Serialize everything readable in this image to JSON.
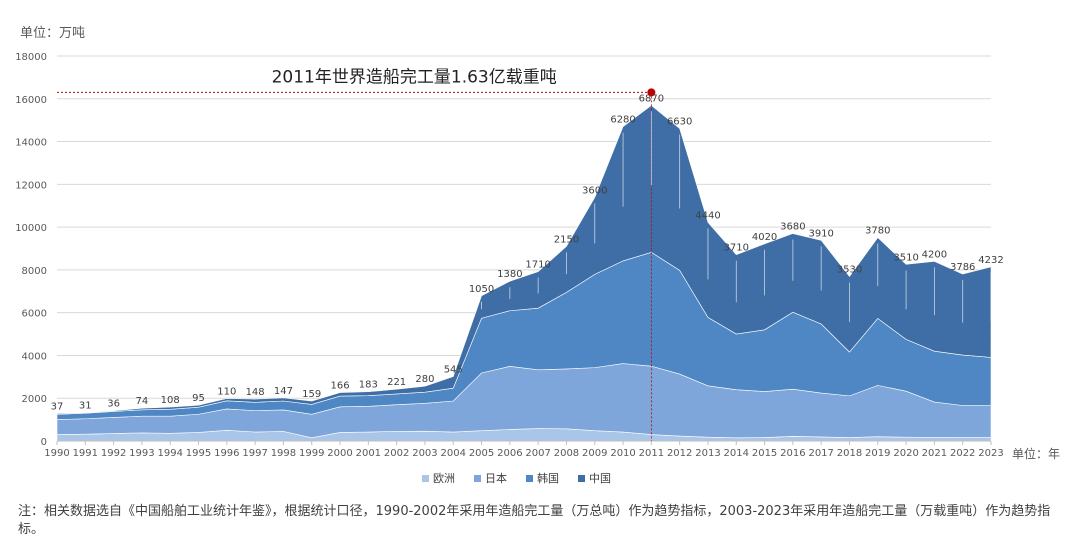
{
  "unit_y": "单位：万吨",
  "unit_x": "单位：年",
  "note": "注：相关数据选自《中国船舶工业统计年鉴》，根据统计口径，1990-2002年采用年造船完工量（万总吨）作为趋势指标，2003-2023年采用年造船完工量（万载重吨）作为趋势指标。",
  "colors": {
    "europe": "#a9c6e8",
    "japan": "#7ea6da",
    "korea": "#4f87c5",
    "china": "#3f6ea6"
  },
  "chart_data": {
    "type": "area",
    "stacked": true,
    "title": "",
    "xlabel": "单位：年",
    "ylabel": "单位：万吨",
    "ylim": [
      0,
      18000
    ],
    "yticks": [
      0,
      2000,
      4000,
      6000,
      8000,
      10000,
      12000,
      14000,
      16000,
      18000
    ],
    "grid": true,
    "legend_position": "bottom",
    "x": [
      "1990",
      "1991",
      "1992",
      "1993",
      "1994",
      "1995",
      "1996",
      "1997",
      "1998",
      "1999",
      "2000",
      "2001",
      "2002",
      "2003",
      "2004",
      "2005",
      "2006",
      "2007",
      "2008",
      "2009",
      "2010",
      "2011",
      "2012",
      "2013",
      "2014",
      "2015",
      "2016",
      "2017",
      "2018",
      "2019",
      "2020",
      "2021",
      "2022",
      "2023"
    ],
    "series": [
      {
        "name": "欧洲",
        "color_key": "europe",
        "values": [
          300,
          320,
          350,
          380,
          360,
          400,
          500,
          420,
          450,
          150,
          400,
          420,
          450,
          460,
          420,
          480,
          540,
          580,
          570,
          480,
          420,
          300,
          230,
          180,
          150,
          160,
          220,
          190,
          160,
          200,
          180,
          170,
          160,
          160
        ]
      },
      {
        "name": "日本",
        "color_key": "japan",
        "values": [
          700,
          720,
          750,
          780,
          800,
          850,
          1000,
          1000,
          1000,
          1100,
          1200,
          1200,
          1250,
          1300,
          1450,
          2700,
          2950,
          2750,
          2800,
          2950,
          3200,
          3200,
          2900,
          2400,
          2250,
          2150,
          2200,
          2050,
          1950,
          2400,
          2150,
          1650,
          1500,
          1500
        ]
      },
      {
        "name": "韩国",
        "color_key": "korea",
        "values": [
          250,
          260,
          280,
          300,
          320,
          330,
          380,
          390,
          420,
          460,
          500,
          500,
          500,
          520,
          600,
          2560,
          2600,
          2880,
          3580,
          4360,
          4800,
          5320,
          4850,
          3200,
          2600,
          2890,
          3600,
          3230,
          2050,
          3130,
          2420,
          2380,
          2360,
          2250
        ]
      },
      {
        "name": "中国",
        "color_key": "china",
        "values": [
          37,
          31,
          36,
          74,
          108,
          95,
          110,
          148,
          147,
          159,
          166,
          183,
          221,
          280,
          545,
          1050,
          1380,
          1710,
          2150,
          3600,
          6280,
          6870,
          6630,
          4440,
          3710,
          4020,
          3680,
          3910,
          3530,
          3780,
          3510,
          4200,
          3786,
          4232
        ]
      }
    ],
    "data_labels": {
      "series": "中国",
      "values": [
        "37",
        "31",
        "36",
        "74",
        "108",
        "95",
        "110",
        "148",
        "147",
        "159",
        "166",
        "183",
        "221",
        "280",
        "545",
        "1050",
        "1380",
        "1710",
        "2150",
        "3600",
        "6280",
        "6870",
        "6630",
        "4440",
        "3710",
        "4020",
        "3680",
        "3910",
        "3530",
        "3780",
        "3510",
        "4200",
        "3786",
        "4232"
      ]
    },
    "annotation": {
      "text": "2011年世界造船完工量1.63亿载重吨",
      "x": "2011",
      "y": 16300
    }
  }
}
